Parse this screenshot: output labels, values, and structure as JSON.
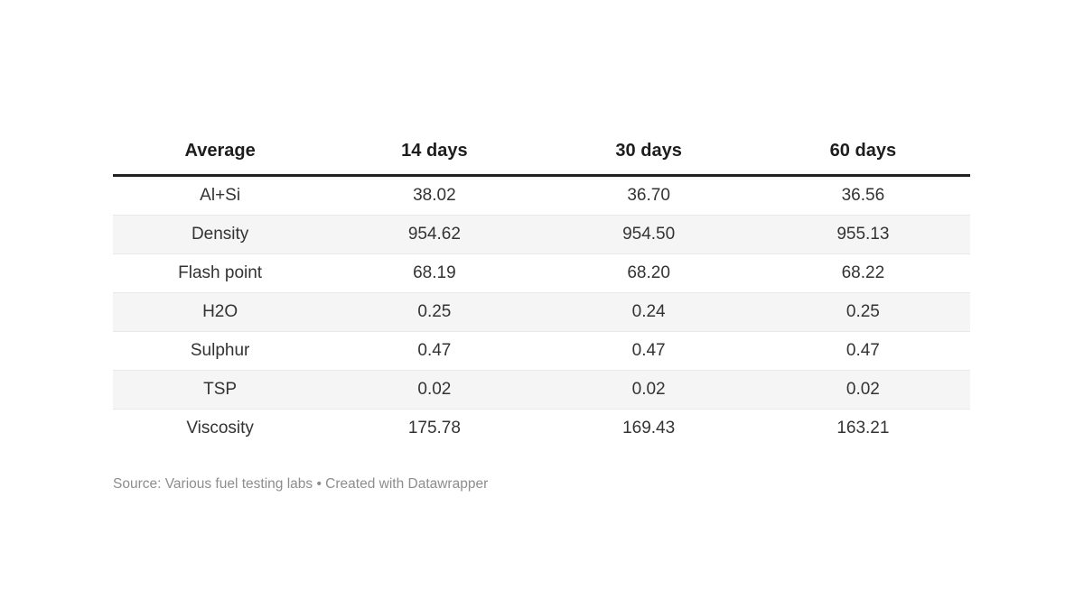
{
  "chart_data": {
    "type": "table",
    "columns": [
      "Average",
      "14 days",
      "30 days",
      "60 days"
    ],
    "rows": [
      [
        "Al+Si",
        "38.02",
        "36.70",
        "36.56"
      ],
      [
        "Density",
        "954.62",
        "954.50",
        "955.13"
      ],
      [
        "Flash point",
        "68.19",
        "68.20",
        "68.22"
      ],
      [
        "H2O",
        "0.25",
        "0.24",
        "0.25"
      ],
      [
        "Sulphur",
        "0.47",
        "0.47",
        "0.47"
      ],
      [
        "TSP",
        "0.02",
        "0.02",
        "0.02"
      ],
      [
        "Viscosity",
        "175.78",
        "169.43",
        "163.21"
      ]
    ],
    "striped_row_indexes": [
      1,
      3,
      5
    ],
    "source_note": "Source: Various fuel testing labs • Created with Datawrapper",
    "layout": {
      "grid": "row-stripes",
      "legend_position": "none"
    },
    "colors": {
      "header_text": "#1d1d1d",
      "body_text": "#333333",
      "header_rule": "#212121",
      "row_stripe": "#f5f5f5",
      "row_divider": "#e8e8e8",
      "source_text": "#8d8d8d",
      "background": "#ffffff"
    }
  }
}
